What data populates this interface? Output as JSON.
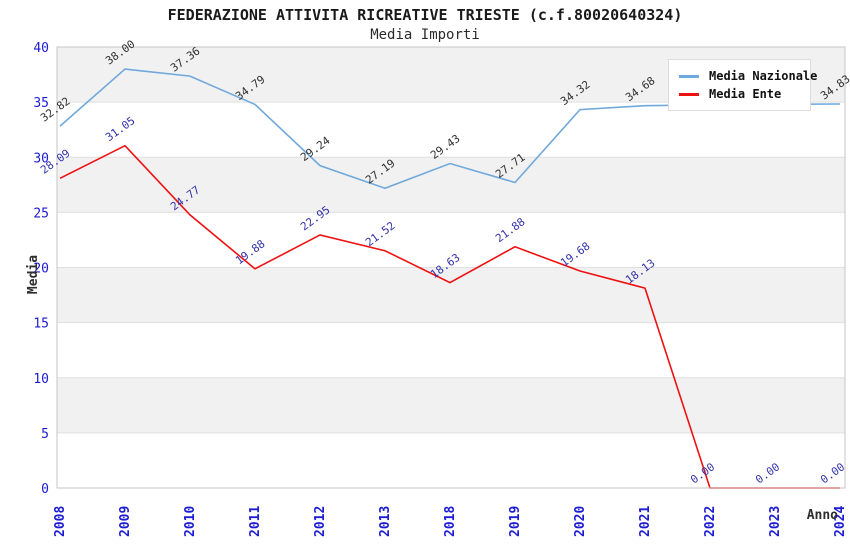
{
  "title": "FEDERAZIONE ATTIVITA RICREATIVE TRIESTE (c.f.80020640324)",
  "subtitle": "Media Importi",
  "axes": {
    "y_label": "Media",
    "x_label": "Anno",
    "y_ticks": [
      0,
      5,
      10,
      15,
      20,
      25,
      30,
      35,
      40
    ]
  },
  "legend": {
    "position": "top-right",
    "items": [
      {
        "label": "Media Nazionale",
        "color": "#6FA8DC"
      },
      {
        "label": "Media Ente",
        "color": "#EE1111"
      }
    ]
  },
  "colors": {
    "axis_tick_text": "#1C1CD2",
    "band_gray": "#F1F1F1",
    "gridline": "#E0E0E0",
    "plot_border": "#C6C6C6",
    "series_nazionale": "#6FA8DC",
    "series_ente": "#EE1111",
    "label_nazionale": "#303030",
    "label_ente": "#3333AA"
  },
  "chart_data": {
    "type": "line",
    "title": "FEDERAZIONE ATTIVITA RICREATIVE TRIESTE (c.f.80020640324)",
    "subtitle": "Media Importi",
    "xlabel": "Anno",
    "ylabel": "Media",
    "ylim": [
      0,
      40
    ],
    "grid": "horizontal bands alternating gray/white every 5 units, gray topmost (35-40)",
    "legend_position": "top-right",
    "categories": [
      "2008",
      "2009",
      "2010",
      "2011",
      "2012",
      "2013",
      "2018",
      "2019",
      "2020",
      "2021",
      "2022",
      "2023",
      "2024"
    ],
    "series": [
      {
        "name": "Media Nazionale",
        "color": "#6FA8DC",
        "values": [
          32.82,
          38.0,
          37.36,
          34.79,
          29.24,
          27.19,
          29.43,
          27.71,
          34.32,
          34.68,
          34.75,
          34.8,
          34.83
        ],
        "labels": [
          "32.82",
          "38.00",
          "37.36",
          "34.79",
          "29.24",
          "27.19",
          "29.43",
          "27.71",
          "34.32",
          "34.68",
          "",
          "",
          "34.83"
        ],
        "note_hidden_labels": "labels for 2022 and 2023 are covered by the legend box; values estimated from line position"
      },
      {
        "name": "Media Ente",
        "color": "#EE1111",
        "values": [
          28.09,
          31.05,
          24.77,
          19.88,
          22.95,
          21.52,
          18.63,
          21.88,
          19.68,
          18.13,
          0.0,
          0.0,
          0.0
        ],
        "labels": [
          "28.09",
          "31.05",
          "24.77",
          "19.88",
          "22.95",
          "21.52",
          "18.63",
          "21.88",
          "19.68",
          "18.13",
          "0.00",
          "0.00",
          "0.00"
        ]
      }
    ]
  }
}
